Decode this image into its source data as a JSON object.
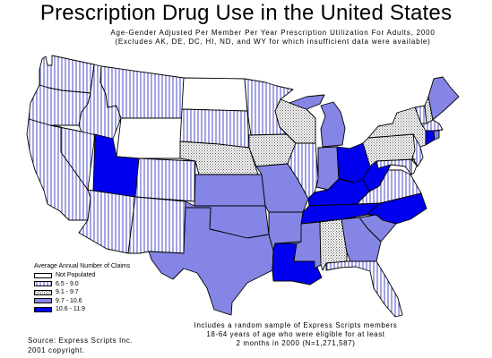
{
  "title": "Prescription Drug Use in the United States",
  "subtitle_line1": "Age-Gender Adjusted Per Member Per Year Prescription Utilization For Adults, 2000",
  "subtitle_line2": "(Excludes AK, DE, DC, HI, ND, and WY for which insufficient data were available)",
  "legend": {
    "title": "Average Annual Number of Claims",
    "items": [
      {
        "label": "Not Populated",
        "class": "c0"
      },
      {
        "label": "6.5 - 9.0",
        "class": "c1"
      },
      {
        "label": "9.1 - 9.7",
        "class": "c2"
      },
      {
        "label": "9.7 - 10.6",
        "class": "c3"
      },
      {
        "label": "10.6 - 11.9",
        "class": "c4"
      }
    ]
  },
  "footnote": [
    "Includes a random sample of Express Scripts members",
    "18-64 years of age who were eligible for at least",
    "2 months in 2000 (N=1,271,587)"
  ],
  "source": [
    "Source: Express Scripts Inc.",
    "2001 copyright."
  ],
  "colors": {
    "c0": "#ffffff",
    "c3": "#8585e6",
    "c4": "#0000ee",
    "hatch": "#4a4ac8",
    "dots": "#555555"
  },
  "state_classes": {
    "WA": "c1",
    "OR": "c1",
    "CA": "c1",
    "NV": "c1",
    "ID": "c1",
    "MT": "c1",
    "WY": "c0",
    "UT": "c4",
    "AZ": "c1",
    "CO": "c1",
    "NM": "c1",
    "ND": "c0",
    "SD": "c1",
    "NE": "c2",
    "KS": "c3",
    "OK": "c3",
    "TX": "c3",
    "MN": "c1",
    "IA": "c2",
    "MO": "c3",
    "AR": "c3",
    "LA": "c4",
    "WI": "c2",
    "IL": "c1",
    "MI": "c3",
    "IN": "c3",
    "OH": "c4",
    "KY": "c4",
    "TN": "c4",
    "MS": "c3",
    "AL": "c2",
    "GA": "c3",
    "FL": "c1",
    "SC": "c3",
    "NC": "c4",
    "VA": "c1",
    "WV": "c4",
    "PA": "c2",
    "NY": "c2",
    "VT": "c1",
    "NH": "c2",
    "ME": "c3",
    "MA": "c1",
    "CT": "c4",
    "RI": "c3",
    "NJ": "c1",
    "MD": "c1",
    "DE": "c0"
  }
}
